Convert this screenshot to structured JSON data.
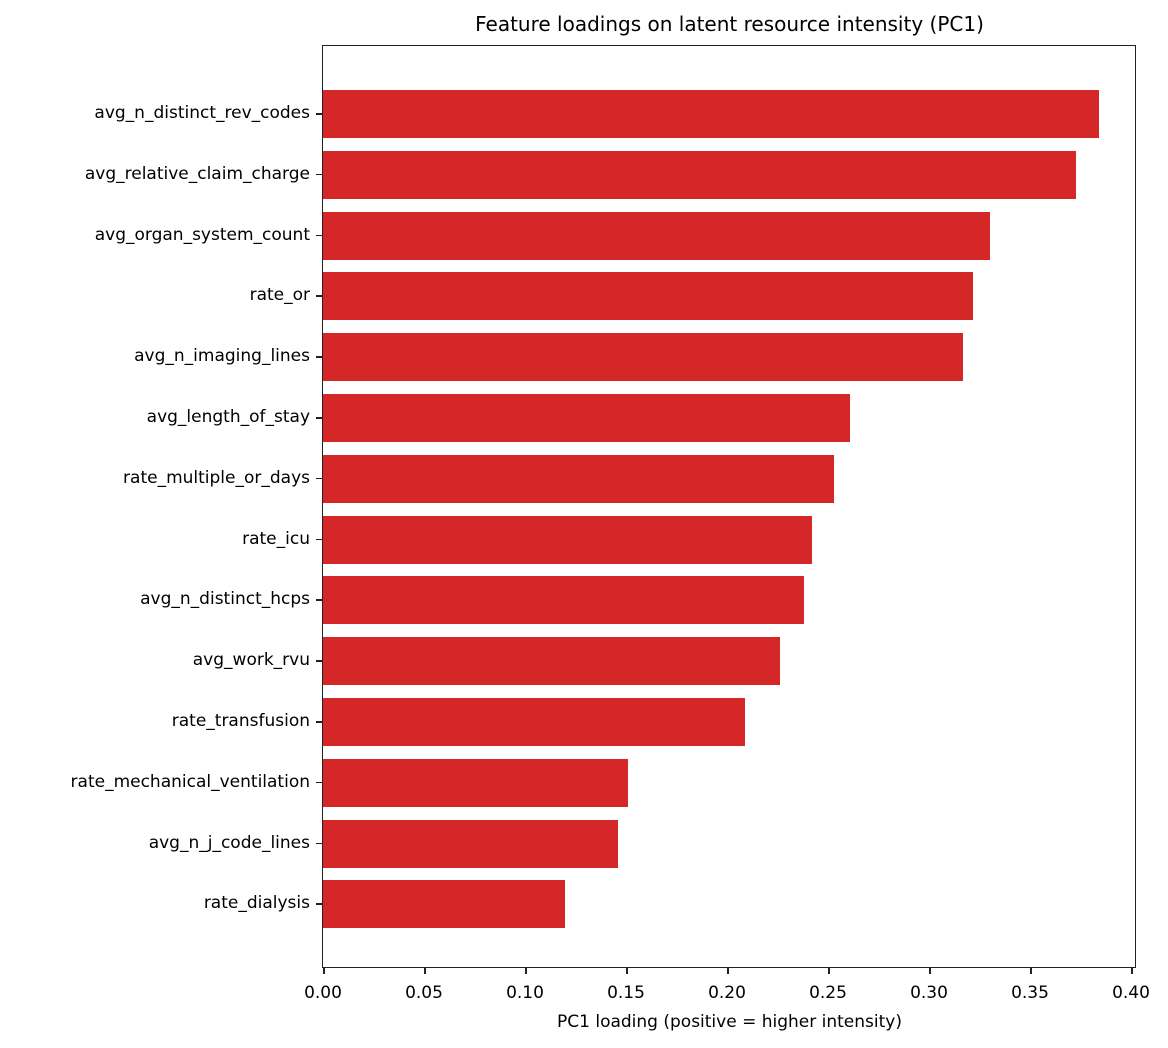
{
  "chart_data": {
    "type": "bar",
    "orientation": "horizontal",
    "title": "Feature loadings on latent resource intensity (PC1)",
    "xlabel": "PC1 loading (positive = higher intensity)",
    "ylabel": "",
    "xlim": [
      0.0,
      0.403
    ],
    "xticks": [
      "0.00",
      "0.05",
      "0.10",
      "0.15",
      "0.20",
      "0.25",
      "0.30",
      "0.35",
      "0.40"
    ],
    "grid": false,
    "legend": null,
    "bar_color": "#d62728",
    "categories": [
      "avg_n_distinct_rev_codes",
      "avg_relative_claim_charge",
      "avg_organ_system_count",
      "rate_or",
      "avg_n_imaging_lines",
      "avg_length_of_stay",
      "rate_multiple_or_days",
      "rate_icu",
      "avg_n_distinct_hcps",
      "avg_work_rvu",
      "rate_transfusion",
      "rate_mechanical_ventilation",
      "avg_n_j_code_lines",
      "rate_dialysis"
    ],
    "values": [
      0.384,
      0.373,
      0.33,
      0.322,
      0.317,
      0.261,
      0.253,
      0.242,
      0.238,
      0.226,
      0.209,
      0.151,
      0.146,
      0.12
    ]
  }
}
